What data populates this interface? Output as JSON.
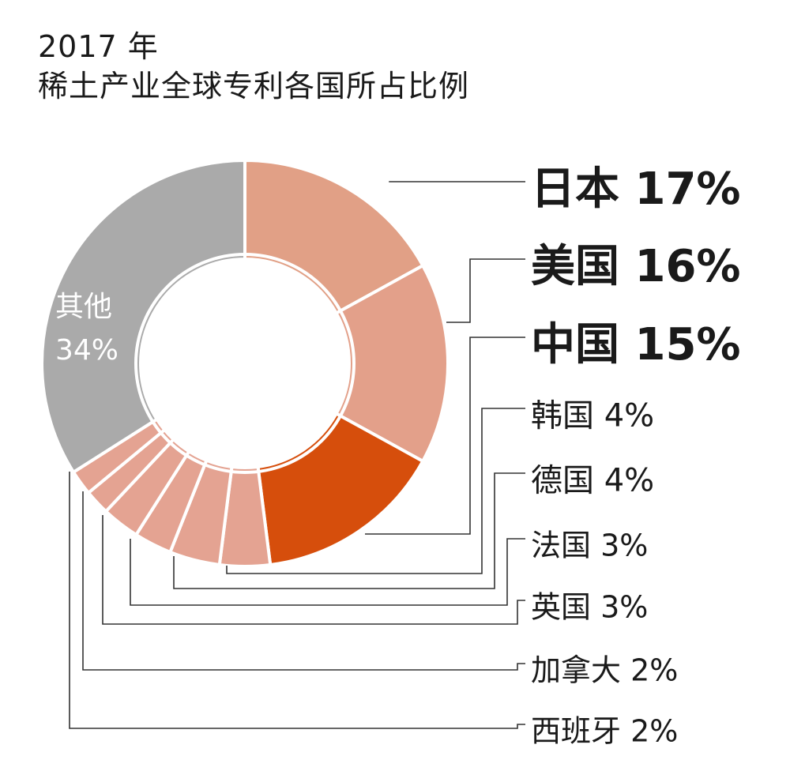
{
  "header": {
    "year": "2017 年",
    "title": "稀土产业全球专利各国所占比例"
  },
  "chart_data": {
    "type": "pie",
    "title": "2017 年 稀土产业全球专利各国所占比例",
    "unit": "%",
    "slices": [
      {
        "name": "日本",
        "label": "17%",
        "value": 17,
        "color": "#e1a086"
      },
      {
        "name": "美国",
        "label": "16%",
        "value": 16,
        "color": "#e3a08a"
      },
      {
        "name": "中国",
        "label": "15%",
        "value": 15,
        "color": "#d64e0c"
      },
      {
        "name": "韩国",
        "label": "4%",
        "value": 4,
        "color": "#e4a392"
      },
      {
        "name": "德国",
        "label": "4%",
        "value": 4,
        "color": "#e4a392"
      },
      {
        "name": "法国",
        "label": "3%",
        "value": 3,
        "color": "#e4a392"
      },
      {
        "name": "英国",
        "label": "3%",
        "value": 3,
        "color": "#e4a392"
      },
      {
        "name": "加拿大",
        "label": "2%",
        "value": 2,
        "color": "#e4a392"
      },
      {
        "name": "西班牙",
        "label": "2%",
        "value": 2,
        "color": "#e4a392"
      },
      {
        "name": "其他",
        "label": "34%",
        "value": 34,
        "color": "#aaaaaa"
      }
    ]
  }
}
